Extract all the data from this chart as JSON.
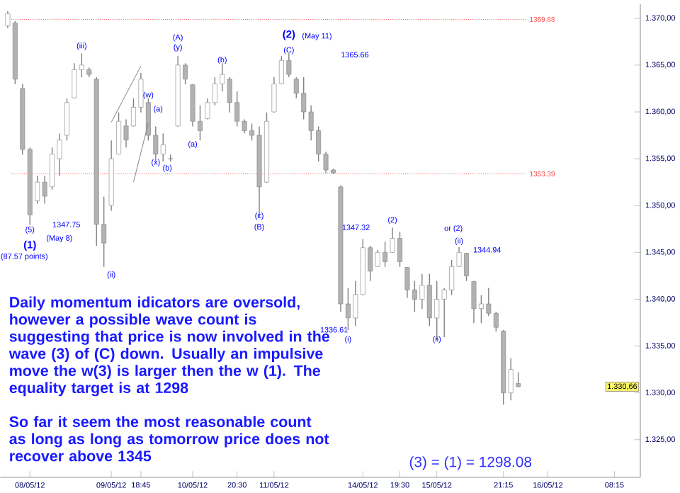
{
  "chart_data": {
    "type": "candlestick",
    "color": "#808080",
    "categories": [
      null,
      null,
      null,
      "08/05/12",
      null,
      null,
      null,
      null,
      null,
      null,
      null,
      null,
      null,
      null,
      "09/05/12",
      null,
      null,
      null,
      "18:45",
      null,
      null,
      null,
      null,
      null,
      null,
      "10/05/12",
      null,
      null,
      null,
      null,
      null,
      "20:30",
      null,
      null,
      null,
      null,
      "11/05/12",
      null,
      null,
      null,
      null,
      null,
      null,
      null,
      null,
      null,
      null,
      null,
      "14/05/12",
      null,
      null,
      null,
      null,
      "19:30",
      null,
      null,
      null,
      null,
      "15/05/12",
      null,
      null,
      null,
      null,
      null,
      null,
      null,
      null,
      "21:15",
      null,
      null,
      null,
      null,
      null,
      "16/05/12",
      null,
      null,
      null,
      null,
      null,
      null,
      null,
      null,
      "08:15",
      null,
      null,
      null
    ],
    "ohlc": [
      [
        1369.2,
        1370.75,
        1368.95,
        1370.5
      ],
      [
        1369.5,
        1369.7,
        1362.95,
        1363.5
      ],
      [
        1362.5,
        1362.95,
        1355.45,
        1356
      ],
      [
        1356,
        1356.2,
        1347.95,
        1349
      ],
      [
        1350.5,
        1353.2,
        1350.2,
        1352.5
      ],
      [
        1352.5,
        1353.2,
        1350.2,
        1351
      ],
      [
        1352,
        1356.2,
        1351.7,
        1355.5
      ],
      [
        1355,
        1357.7,
        1353.2,
        1357
      ],
      [
        1357.5,
        1361.45,
        1356.95,
        1361
      ],
      [
        1361.5,
        1365.2,
        1361.45,
        1364.5
      ],
      [
        1364.5,
        1366.25,
        1363.7,
        1365
      ],
      [
        1364.5,
        1364.75,
        1363.7,
        1364
      ],
      [
        1363.5,
        1363.7,
        1345.7,
        1348
      ],
      [
        1348,
        1350.95,
        1343.45,
        1346
      ],
      [
        1350,
        1356.95,
        1349.45,
        1355
      ],
      [
        1355.5,
        1359.95,
        1355.45,
        1359
      ],
      [
        1358.5,
        1359.2,
        1356.2,
        1357
      ],
      [
        1358.5,
        1361.45,
        1358.45,
        1360.5
      ],
      [
        1360.5,
        1364.15,
        1359.95,
        1363.5
      ],
      [
        1361,
        1361.45,
        1356.95,
        1357.5
      ],
      [
        1357.5,
        1358.45,
        1354.7,
        1355.5
      ],
      [
        1355.5,
        1357.7,
        1354.7,
        1356.5
      ],
      [
        1355,
        1355.45,
        1354.7,
        1355
      ],
      [
        1358.5,
        1365.95,
        1358.45,
        1365
      ],
      [
        1365,
        1365.2,
        1362.95,
        1363.5
      ],
      [
        1362.9,
        1362.95,
        1358.45,
        1359
      ],
      [
        1359,
        1360.7,
        1356.95,
        1358
      ],
      [
        1359.3,
        1361.45,
        1359.2,
        1361
      ],
      [
        1361,
        1363.7,
        1360.7,
        1363
      ],
      [
        1363,
        1365.2,
        1362.2,
        1364
      ],
      [
        1363.5,
        1363.7,
        1359.95,
        1361
      ],
      [
        1361,
        1362.2,
        1358.45,
        1359
      ],
      [
        1359,
        1359.2,
        1357.7,
        1358
      ],
      [
        1358,
        1358.75,
        1356.95,
        1357.5
      ],
      [
        1357.5,
        1358.45,
        1348.7,
        1352
      ],
      [
        1352.5,
        1359.95,
        1352.45,
        1359
      ],
      [
        1360,
        1363.7,
        1359.95,
        1363
      ],
      [
        1363,
        1365.95,
        1362.95,
        1365.5
      ],
      [
        1365.5,
        1366.25,
        1363.7,
        1364
      ],
      [
        1363.5,
        1363.7,
        1361.45,
        1362
      ],
      [
        1362,
        1363.7,
        1359.2,
        1360
      ],
      [
        1360,
        1360.7,
        1356.95,
        1358
      ],
      [
        1358,
        1358.45,
        1354.7,
        1355.5
      ],
      [
        1355.5,
        1355.75,
        1353.5,
        1353.8
      ],
      [
        1353.8,
        1353.95,
        1353.35,
        1353.5
      ],
      [
        1352,
        1352.15,
        1338.65,
        1339.5
      ],
      [
        1339.5,
        1341.2,
        1336.7,
        1338
      ],
      [
        1338,
        1341.95,
        1337.15,
        1340.5
      ],
      [
        1340.5,
        1346.45,
        1340.45,
        1345.5
      ],
      [
        1345.5,
        1345.7,
        1341.95,
        1343
      ],
      [
        1343.5,
        1345.25,
        1343.45,
        1345
      ],
      [
        1345,
        1346.15,
        1343.45,
        1344
      ],
      [
        1345,
        1347.65,
        1344.95,
        1346.5
      ],
      [
        1346.5,
        1347.2,
        1343.45,
        1344
      ],
      [
        1343.4,
        1343.45,
        1340.15,
        1341
      ],
      [
        1341,
        1341.95,
        1338.65,
        1340
      ],
      [
        1340,
        1342.7,
        1338.95,
        1341.5
      ],
      [
        1341.5,
        1342.7,
        1337.15,
        1338
      ],
      [
        1338,
        1341.95,
        1335.65,
        1340
      ],
      [
        1340,
        1341.2,
        1335.95,
        1341
      ],
      [
        1341,
        1344.2,
        1340.45,
        1343.5
      ],
      [
        1343.5,
        1345.55,
        1343.45,
        1345
      ],
      [
        1344.9,
        1344.95,
        1341.95,
        1342.5
      ],
      [
        1341.9,
        1341.95,
        1337.45,
        1339
      ],
      [
        1339,
        1340.45,
        1337.45,
        1339.5
      ],
      [
        1339.5,
        1341.2,
        1338.2,
        1338.5
      ],
      [
        1338.5,
        1338.65,
        1336.55,
        1337
      ],
      [
        1336.6,
        1336.7,
        1328.75,
        1330
      ],
      [
        1330,
        1333.7,
        1329.2,
        1332.5
      ],
      [
        1331,
        1332.2,
        1330.6,
        1330.66
      ],
      null,
      null,
      null,
      null,
      null,
      null,
      null,
      null,
      null,
      null,
      null,
      null,
      null,
      null,
      null,
      null
    ],
    "series": [
      {
        "type": "line",
        "color": "#808080",
        "values": [
          null,
          null,
          null,
          null,
          null,
          null,
          null,
          null,
          null,
          null,
          null,
          null,
          null,
          null,
          1358.9,
          null,
          null,
          null,
          1364.9,
          null,
          null,
          null,
          null,
          null,
          null,
          null,
          null,
          null,
          null,
          null,
          null,
          null,
          null,
          null,
          null,
          null,
          null,
          null,
          null,
          null,
          null,
          null,
          null,
          null,
          null,
          null,
          null,
          null,
          null,
          null,
          null,
          null,
          null,
          null,
          null,
          null,
          null,
          null,
          null,
          null,
          null,
          null,
          null,
          null,
          null,
          null,
          null,
          null,
          null,
          null,
          null,
          null,
          null,
          null,
          null,
          null,
          null,
          null,
          null,
          null,
          null,
          null,
          null,
          null,
          null,
          null
        ]
      },
      {
        "type": "line",
        "color": "#808080",
        "values": [
          null,
          null,
          null,
          null,
          null,
          null,
          null,
          null,
          null,
          null,
          null,
          null,
          null,
          null,
          null,
          null,
          null,
          1352.5,
          null,
          1358.8,
          null,
          null,
          null,
          null,
          null,
          null,
          null,
          null,
          null,
          null,
          null,
          null,
          null,
          null,
          null,
          null,
          null,
          null,
          null,
          null,
          null,
          null,
          null,
          null,
          null,
          null,
          null,
          null,
          null,
          null,
          null,
          null,
          null,
          null,
          null,
          null,
          null,
          null,
          null,
          null,
          null,
          null,
          null,
          null,
          null,
          null,
          null,
          null,
          null,
          null,
          null,
          null,
          null,
          null,
          null,
          null,
          null,
          null,
          null,
          null,
          null,
          null,
          null,
          null,
          null,
          null
        ]
      }
    ],
    "ylim": [
      1321,
      1371.5
    ],
    "yticks": [
      {
        "value": 1325,
        "label": "1.325,00"
      },
      {
        "value": 1330,
        "label": "1.330,00"
      },
      {
        "value": 1335,
        "label": "1.335,00"
      },
      {
        "value": 1340,
        "label": "1.340,00"
      },
      {
        "value": 1345,
        "label": "1.345,00"
      },
      {
        "value": 1350,
        "label": "1.350,00"
      },
      {
        "value": 1355,
        "label": "1.355,00"
      },
      {
        "value": 1360,
        "label": "1.360,00"
      },
      {
        "value": 1365,
        "label": "1.365,00"
      },
      {
        "value": 1370,
        "label": "1.370,00"
      }
    ],
    "ref_lines": [
      {
        "axis": "y",
        "value": 1369.88,
        "label": "1369.88",
        "color": "#ff4444",
        "line_style": "dotted"
      },
      {
        "axis": "y",
        "value": 1353.39,
        "label": "1353.39",
        "color": "#ff4444",
        "line_style": "dotted"
      }
    ],
    "annotations": [
      "Daily momentum idicators are oversold, however a possible wave count is suggesting that price is now involved in the wave (3) of (C) down. Usually an impulsive move the w(3) is larger then the w (1). The equality target is at 1298",
      "So far it seem the most reasonable count as long as long as tomorrow price does not recover above 1345",
      "(3) = (1) = 1298.08",
      "1.330,66",
      "(5)",
      "**(1)**",
      "(May 8)",
      "1347.75",
      "(87.57 points)",
      "(iii)",
      "(ii)",
      "(w)",
      "(a)",
      "(x)",
      "(b)",
      "(A)",
      "(y)",
      "(b)",
      "(a)",
      "(c)",
      "(B)",
      "**(2)**",
      "(C)",
      "(May 11)",
      "1365.66",
      "1347.32",
      "(2)",
      "or (2)",
      "(ii)",
      "1344.94",
      "1336.61",
      "(i)",
      "(ii)"
    ]
  }
}
